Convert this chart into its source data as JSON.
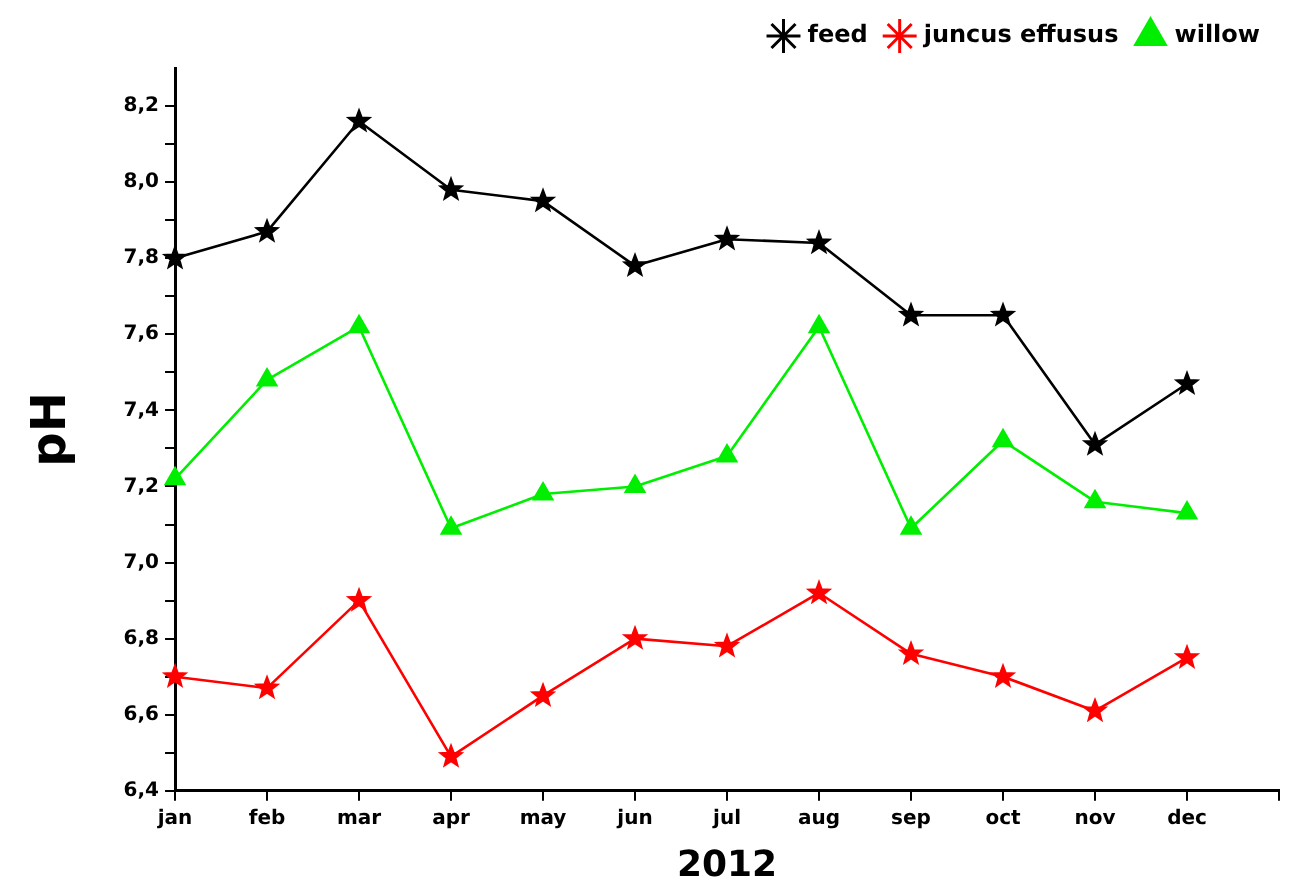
{
  "chart_data": {
    "type": "line",
    "xlabel": "2012",
    "ylabel": "pH",
    "categories": [
      "jan",
      "feb",
      "mar",
      "apr",
      "may",
      "jun",
      "jul",
      "aug",
      "sep",
      "oct",
      "nov",
      "dec",
      null
    ],
    "series": [
      {
        "name": "feed",
        "color": "#000000",
        "marker": "star",
        "values": [
          7.8,
          7.87,
          8.16,
          7.98,
          7.95,
          7.78,
          7.85,
          7.84,
          7.65,
          7.65,
          7.31,
          7.47,
          null
        ]
      },
      {
        "name": "juncus effusus",
        "color": "#ff0000",
        "marker": "star",
        "values": [
          6.7,
          6.67,
          6.9,
          6.49,
          6.65,
          6.8,
          6.78,
          6.92,
          6.76,
          6.7,
          6.61,
          6.75,
          null
        ]
      },
      {
        "name": "willow",
        "color": "#00ee00",
        "marker": "triangle",
        "values": [
          7.22,
          7.48,
          7.62,
          7.09,
          7.18,
          7.2,
          7.28,
          7.62,
          7.09,
          7.32,
          7.16,
          7.13,
          null
        ]
      }
    ],
    "ylim": [
      6.4,
      8.3
    ],
    "yticks": [
      {
        "value": 6.4,
        "label": "6,4"
      },
      {
        "value": 6.5,
        "label": null
      },
      {
        "value": 6.6,
        "label": "6,6"
      },
      {
        "value": 6.7,
        "label": null
      },
      {
        "value": 6.8,
        "label": "6,8"
      },
      {
        "value": 6.9,
        "label": null
      },
      {
        "value": 7.0,
        "label": "7,0"
      },
      {
        "value": 7.1,
        "label": null
      },
      {
        "value": 7.2,
        "label": "7,2"
      },
      {
        "value": 7.3,
        "label": null
      },
      {
        "value": 7.4,
        "label": "7,4"
      },
      {
        "value": 7.5,
        "label": null
      },
      {
        "value": 7.6,
        "label": "7,6"
      },
      {
        "value": 7.7,
        "label": null
      },
      {
        "value": 7.8,
        "label": "7,8"
      },
      {
        "value": 7.9,
        "label": null
      },
      {
        "value": 8.0,
        "label": "8,0"
      },
      {
        "value": 8.1,
        "label": null
      },
      {
        "value": 8.2,
        "label": "8,2"
      }
    ],
    "grid": false,
    "legend": "top right"
  }
}
